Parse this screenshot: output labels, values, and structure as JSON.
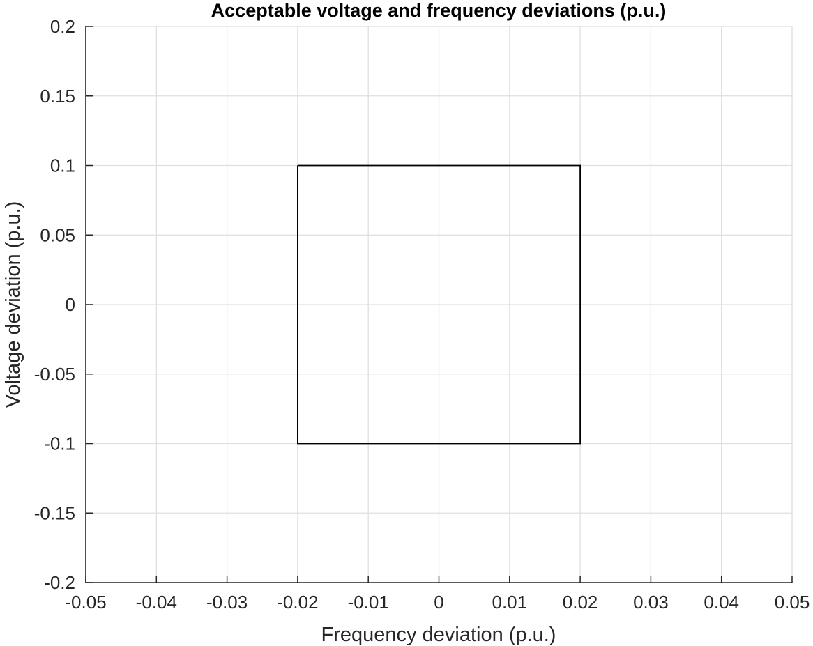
{
  "chart_data": {
    "type": "line",
    "title": "Acceptable voltage and frequency deviations (p.u.)",
    "xlabel": "Frequency deviation (p.u.)",
    "ylabel": "Voltage deviation (p.u.)",
    "xlim": [
      -0.05,
      0.05
    ],
    "ylim": [
      -0.2,
      0.2
    ],
    "x_ticks": [
      -0.05,
      -0.04,
      -0.03,
      -0.02,
      -0.01,
      0,
      0.01,
      0.02,
      0.03,
      0.04,
      0.05
    ],
    "x_tick_labels": [
      "-0.05",
      "-0.04",
      "-0.03",
      "-0.02",
      "-0.01",
      "0",
      "0.01",
      "0.02",
      "0.03",
      "0.04",
      "0.05"
    ],
    "y_ticks": [
      0.2,
      0.15,
      0.1,
      0.05,
      0,
      -0.05,
      -0.1,
      -0.15,
      -0.2
    ],
    "y_tick_labels": [
      "0.2",
      "0.15",
      "0.1",
      "0.05",
      "0",
      "-0.05",
      "-0.1",
      "-0.15",
      "-0.2"
    ],
    "grid": true,
    "legend": "none",
    "series": [
      {
        "x": [
          -0.02,
          0.02,
          0.02,
          -0.02,
          -0.02
        ],
        "y": [
          0.1,
          0.1,
          -0.1,
          -0.1,
          0.1
        ],
        "color": "#000000"
      }
    ]
  },
  "colors": {
    "grid": "#dfdfdf",
    "axis": "#262626",
    "series": "#000000",
    "background": "#ffffff"
  }
}
